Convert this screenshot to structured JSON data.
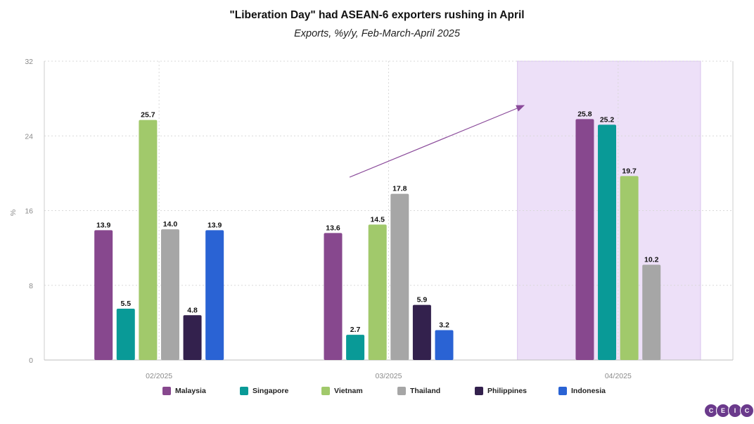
{
  "chart_data": {
    "type": "bar",
    "title": "\"Liberation Day\" had ASEAN-6 exporters rushing in April",
    "subtitle": "Exports, %y/y, Feb-March-April 2025",
    "ylabel": "%",
    "xlabel": "",
    "ylim": [
      0,
      32
    ],
    "yticks": [
      0,
      8,
      16,
      24,
      32
    ],
    "grid": true,
    "legend_position": "bottom",
    "highlighted_category": "04/2025",
    "annotation": "arrow pointing upward toward April",
    "categories": [
      "02/2025",
      "03/2025",
      "04/2025"
    ],
    "series": [
      {
        "name": "Malaysia",
        "color": "#87488e",
        "values": [
          13.9,
          13.6,
          25.8
        ]
      },
      {
        "name": "Singapore",
        "color": "#099a97",
        "values": [
          5.5,
          2.7,
          25.2
        ]
      },
      {
        "name": "Vietnam",
        "color": "#a1c96b",
        "values": [
          25.7,
          14.5,
          19.7
        ]
      },
      {
        "name": "Thailand",
        "color": "#a6a6a6",
        "values": [
          14.0,
          17.8,
          10.2
        ]
      },
      {
        "name": "Philippines",
        "color": "#33214d",
        "values": [
          4.8,
          5.9,
          null
        ]
      },
      {
        "name": "Indonesia",
        "color": "#2a63d4",
        "values": [
          13.9,
          3.2,
          null
        ]
      }
    ]
  },
  "logo": {
    "letters": [
      "C",
      "E",
      "I",
      "C"
    ],
    "color": "#6b3a8c"
  },
  "colors": {
    "highlight": "#ede0f8",
    "highlight_border": "#d8c3ee",
    "arrow": "#8a4a9a"
  }
}
